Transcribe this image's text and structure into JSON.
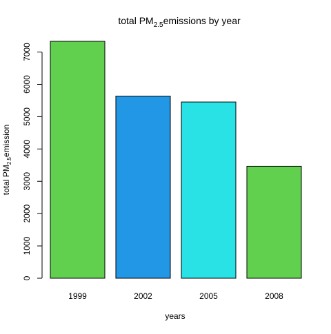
{
  "chart_data": {
    "type": "bar",
    "title": {
      "prefix": "total PM",
      "subscript": "2.5",
      "suffix": "emissions by year"
    },
    "xlabel": "years",
    "ylabel": {
      "prefix": "total PM",
      "subscript": "2.5",
      "suffix": "emission"
    },
    "categories": [
      "1999",
      "2002",
      "2005",
      "2008"
    ],
    "values": [
      7332,
      5636,
      5454,
      3465
    ],
    "colors": [
      "#61D04F",
      "#2297E6",
      "#28E2E5",
      "#61D04F"
    ],
    "ylim": [
      0,
      7332
    ],
    "yticks": [
      0,
      1000,
      2000,
      3000,
      4000,
      5000,
      6000,
      7000
    ],
    "ytick_labels": [
      "0",
      "1000",
      "2000",
      "3000",
      "4000",
      "5000",
      "6000",
      "7000"
    ],
    "grid": false,
    "legend": "none"
  }
}
